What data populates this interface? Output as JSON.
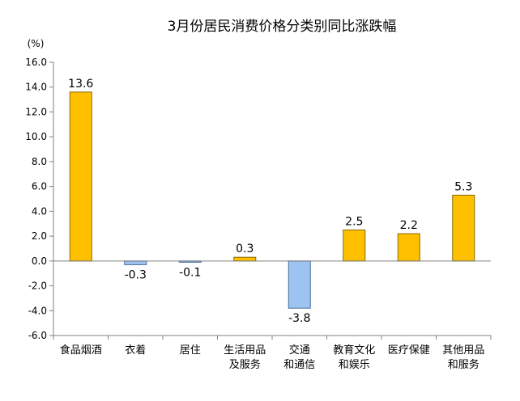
{
  "chart_data": {
    "type": "bar",
    "title": "3月份居民消费价格分类别同比涨跌幅",
    "unit_label": "(%)",
    "categories": [
      [
        "食品烟酒"
      ],
      [
        "衣着"
      ],
      [
        "居住"
      ],
      [
        "生活用品",
        "及服务"
      ],
      [
        "交通",
        "和通信"
      ],
      [
        "教育文化",
        "和娱乐"
      ],
      [
        "医疗保健"
      ],
      [
        "其他用品",
        "和服务"
      ]
    ],
    "values": [
      13.6,
      -0.3,
      -0.1,
      0.3,
      -3.8,
      2.5,
      2.2,
      5.3
    ],
    "value_labels": [
      "13.6",
      "-0.3",
      "-0.1",
      "0.3",
      "-3.8",
      "2.5",
      "2.2",
      "5.3"
    ],
    "ylim": [
      -6,
      16
    ],
    "yticks": [
      -6,
      -4,
      -2,
      0,
      2,
      4,
      6,
      8,
      10,
      12,
      14,
      16
    ],
    "ytick_labels": [
      "-6.0",
      "-4.0",
      "-2.0",
      "0.0",
      "2.0",
      "4.0",
      "6.0",
      "8.0",
      "10.0",
      "12.0",
      "14.0",
      "16.0"
    ],
    "grid": false,
    "legend": "none",
    "colors": {
      "positive_fill": "#FFC000",
      "positive_stroke": "#8A6A00",
      "negative_fill": "#9DC3F0",
      "negative_stroke": "#4A6E9A",
      "axis": "#808080"
    }
  }
}
